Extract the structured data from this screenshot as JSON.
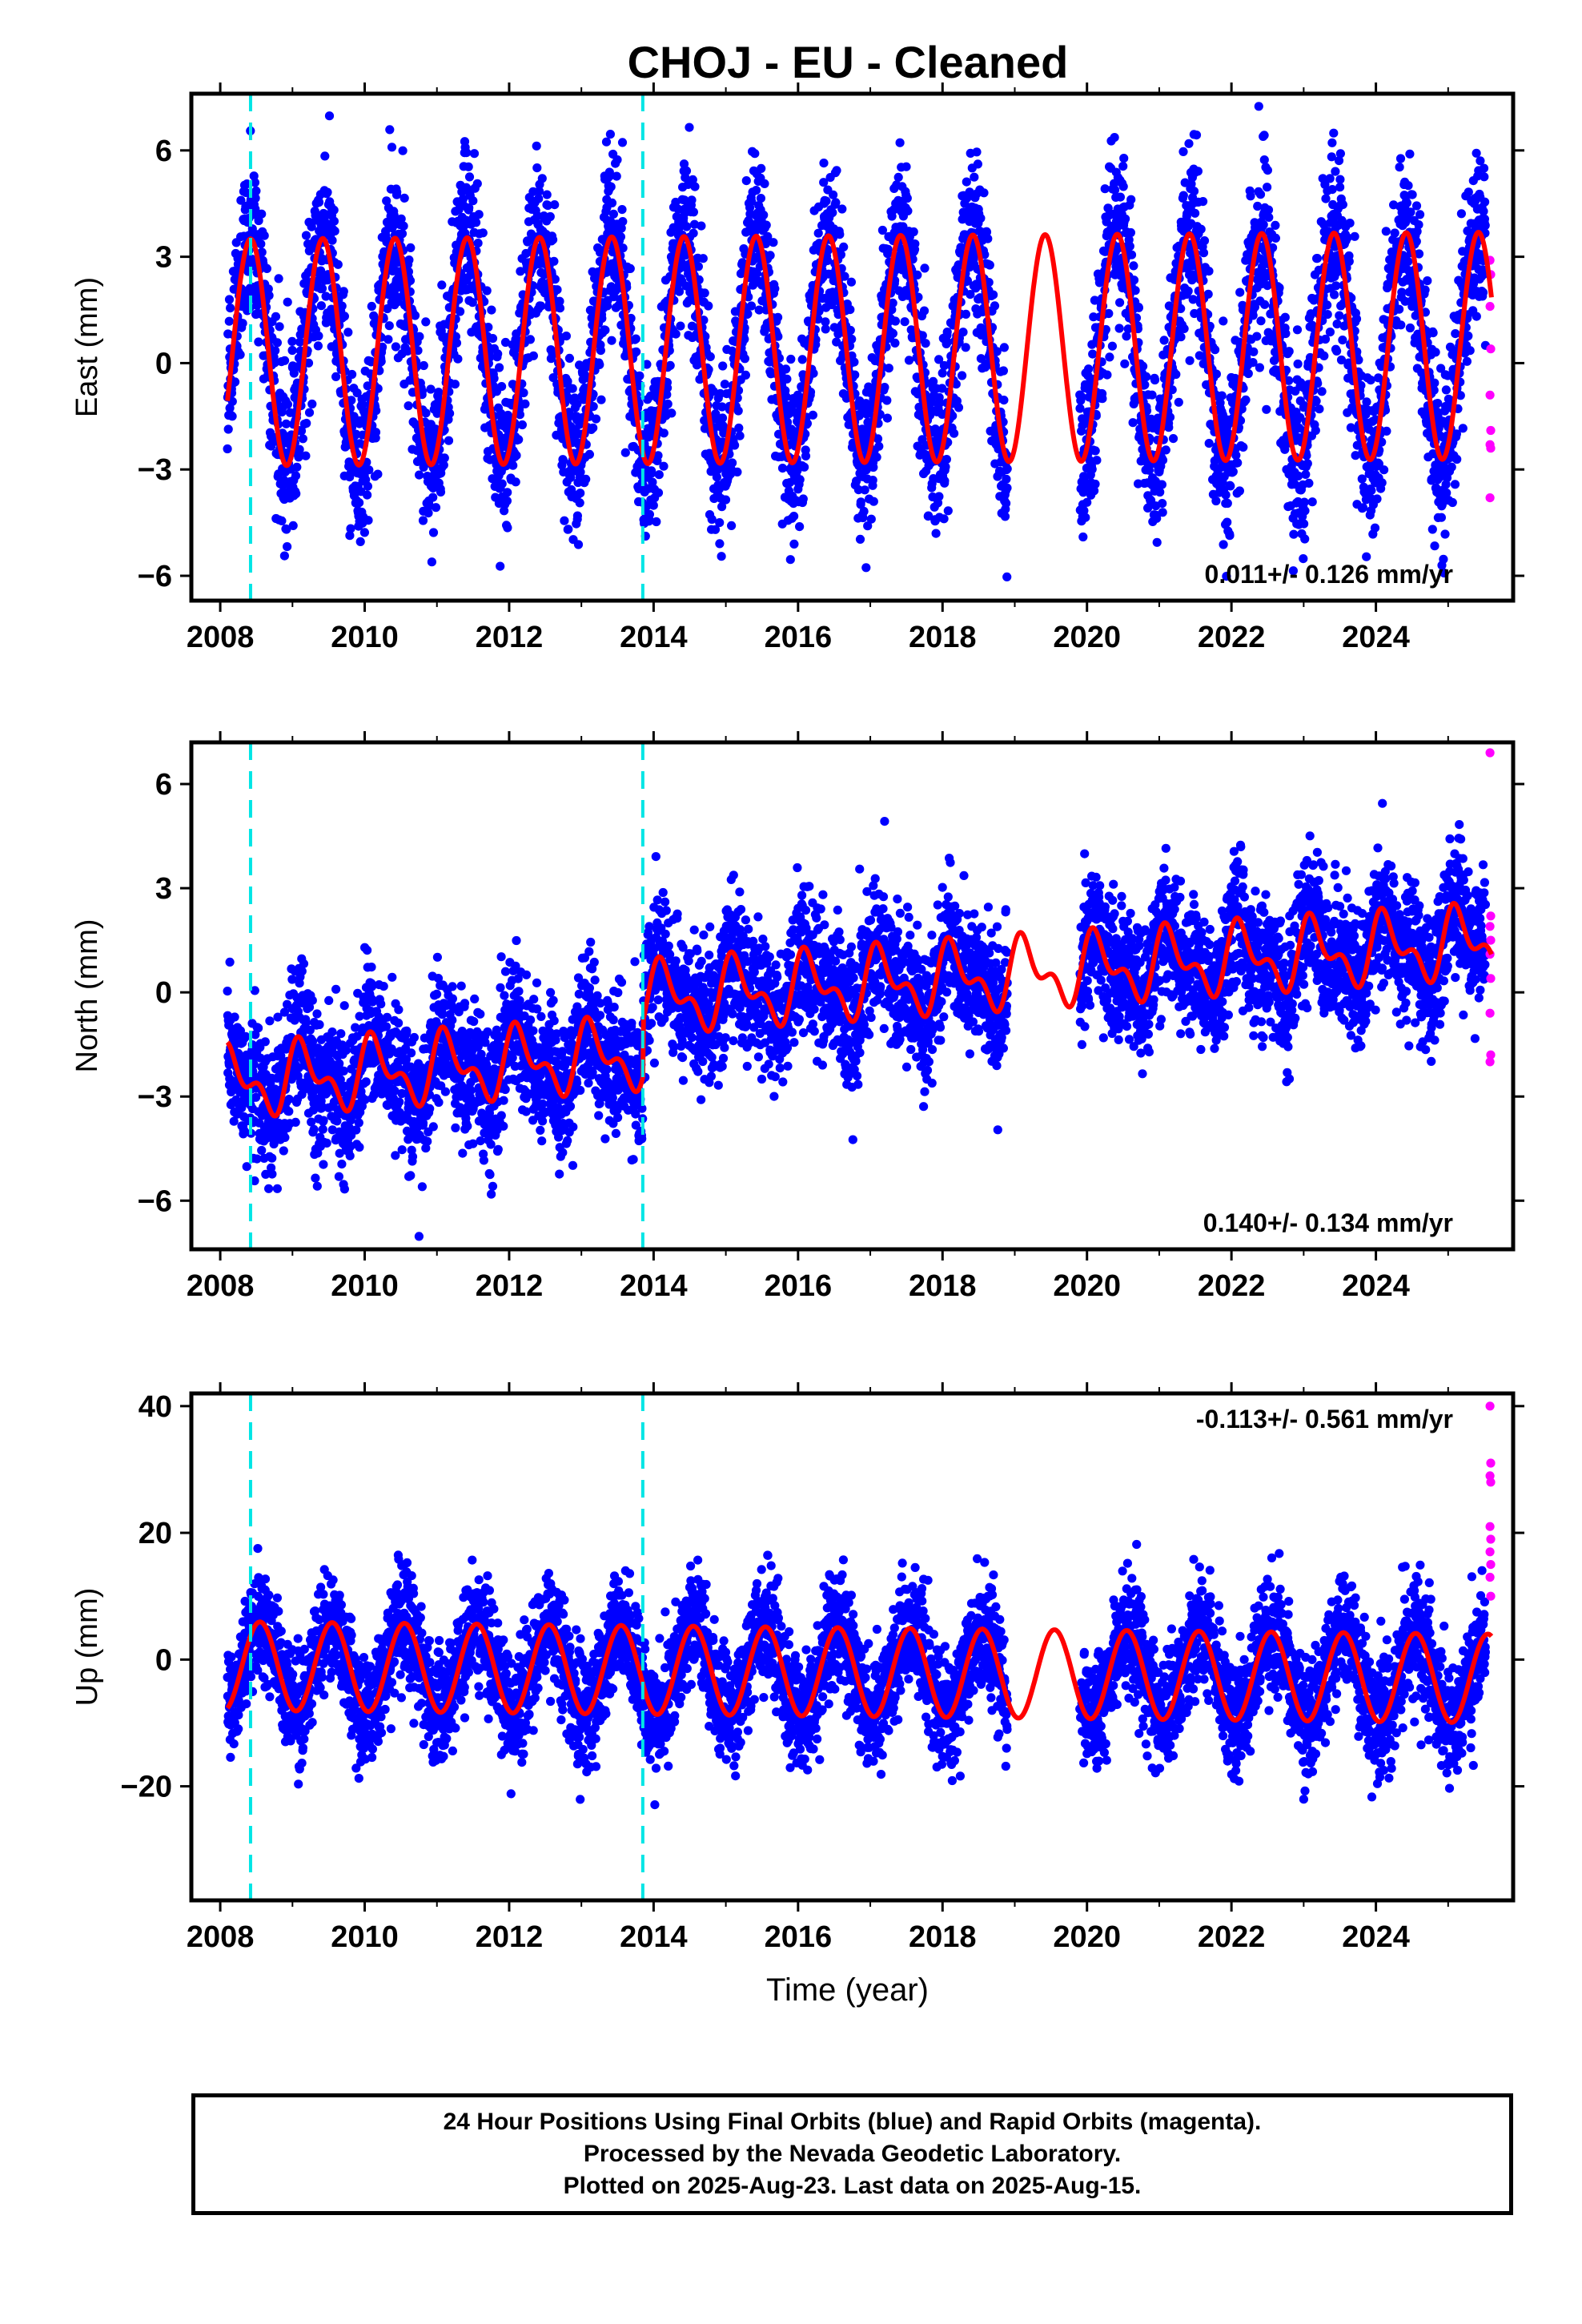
{
  "title": "CHOJ  - EU - Cleaned",
  "colors": {
    "final": "#0000ff",
    "rapid": "#ff00ff",
    "model": "#ff0000",
    "offset": "#00e5e5"
  },
  "footer": {
    "line1": "24 Hour Positions Using Final Orbits (blue) and Rapid Orbits (magenta).",
    "line2": "Processed by the Nevada Geodetic Laboratory.",
    "line3": "Plotted on 2025-Aug-23. Last data on 2025-Aug-15."
  },
  "chart_data": [
    {
      "type": "scatter",
      "component": "east",
      "ylabel": "East (mm)",
      "xlabel": "",
      "xlim": [
        2007.6,
        2025.9
      ],
      "ylim": [
        -6.7,
        7.6
      ],
      "xticks": [
        2008,
        2010,
        2012,
        2014,
        2016,
        2018,
        2020,
        2022,
        2024
      ],
      "yticks": [
        -6,
        -3,
        0,
        3,
        6
      ],
      "velocity_text": "0.011+/- 0.126 mm/yr",
      "offset_lines": [
        2008.42,
        2013.85
      ],
      "data_start": 2008.1,
      "data_end": 2025.6,
      "gap": [
        2018.9,
        2019.9
      ],
      "trend": {
        "ref_year": 2008.1,
        "value": 0.3,
        "rate": 0.011
      },
      "seasonal": {
        "amplitude": 3.2,
        "peak_phase": 0.42,
        "semiannual": 0.0
      },
      "scatter_sd": 1.2,
      "series": [
        {
          "name": "Final Orbits",
          "approx_points": 5800
        },
        {
          "name": "Rapid Orbits",
          "values": [
            2.9,
            2.5,
            1.6,
            0.4,
            -0.9,
            -1.9,
            -2.3,
            -2.4,
            -3.8
          ]
        },
        {
          "name": "Model"
        }
      ]
    },
    {
      "type": "scatter",
      "component": "north",
      "ylabel": "North (mm)",
      "xlabel": "",
      "xlim": [
        2007.6,
        2025.9
      ],
      "ylim": [
        -7.4,
        7.2
      ],
      "xticks": [
        2008,
        2010,
        2012,
        2014,
        2016,
        2018,
        2020,
        2022,
        2024
      ],
      "yticks": [
        -6,
        -3,
        0,
        3,
        6
      ],
      "velocity_text": "0.140+/- 0.134 mm/yr",
      "offset_lines": [
        2008.42,
        2013.85
      ],
      "data_start": 2008.1,
      "data_end": 2025.6,
      "gap": [
        2018.9,
        2019.9
      ],
      "trend": {
        "ref_year": 2008.1,
        "value": -2.6,
        "rate": 0.14
      },
      "steps": [
        {
          "year": 2013.85,
          "size": 1.6
        }
      ],
      "seasonal": {
        "amplitude": 0.8,
        "peak_phase": 0.15,
        "semiannual": 0.5
      },
      "scatter_sd": 1.0,
      "series": [
        {
          "name": "Final Orbits",
          "approx_points": 5800
        },
        {
          "name": "Rapid Orbits",
          "values": [
            6.9,
            2.2,
            1.9,
            1.5,
            1.1,
            0.4,
            -0.6,
            -1.8,
            -2.0
          ]
        },
        {
          "name": "Model"
        }
      ]
    },
    {
      "type": "scatter",
      "component": "up",
      "ylabel": "Up (mm)",
      "xlabel": "Time (year)",
      "xlim": [
        2007.6,
        2025.9
      ],
      "ylim": [
        -38,
        42
      ],
      "xticks": [
        2008,
        2010,
        2012,
        2014,
        2016,
        2018,
        2020,
        2022,
        2024
      ],
      "yticks": [
        -20,
        0,
        20,
        40
      ],
      "velocity_text": "-0.113+/- 0.561 mm/yr",
      "offset_lines": [
        2008.42,
        2013.85
      ],
      "data_start": 2008.1,
      "data_end": 2025.6,
      "gap": [
        2018.9,
        2019.9
      ],
      "trend": {
        "ref_year": 2008.1,
        "value": -1.0,
        "rate": -0.113
      },
      "seasonal": {
        "amplitude": 7.0,
        "peak_phase": 0.55,
        "semiannual": 0.0
      },
      "scatter_sd": 4.5,
      "series": [
        {
          "name": "Final Orbits",
          "approx_points": 5800
        },
        {
          "name": "Rapid Orbits",
          "values": [
            40,
            31,
            29,
            28,
            21,
            19,
            17,
            15,
            13,
            10
          ]
        },
        {
          "name": "Model"
        }
      ]
    }
  ]
}
